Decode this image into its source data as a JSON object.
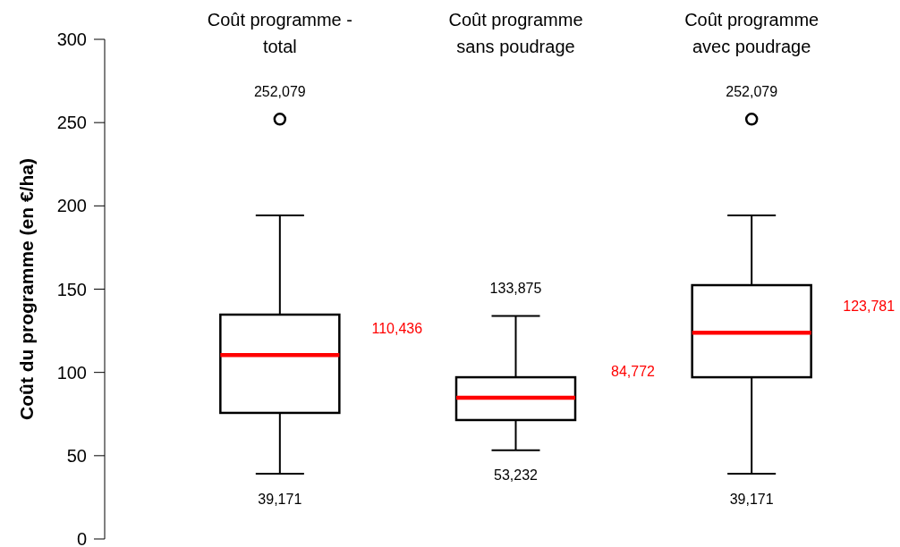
{
  "chart_data": {
    "type": "box",
    "ylabel": "Coût du programme (en €/ha)",
    "categories": [
      "Coût programme - total",
      "Coût programme sans poudrage",
      "Coût programme avec poudrage"
    ],
    "boxes": [
      {
        "low": 39.171,
        "q1": 75.7,
        "median": 110.436,
        "q3": 134.7,
        "high": 194.3,
        "outliers": [
          252.079
        ]
      },
      {
        "low": 53.232,
        "q1": 71.4,
        "median": 84.772,
        "q3": 97.1,
        "high": 133.875
      },
      {
        "low": 39.171,
        "q1": 97.1,
        "median": 123.781,
        "q3": 152.4,
        "high": 194.3,
        "outliers": [
          252.079
        ]
      }
    ],
    "ylim": [
      0,
      300
    ],
    "yticks": [
      0,
      50,
      100,
      150,
      200,
      250,
      300
    ],
    "annotations": [
      "252,079",
      "110,436",
      {
        "text": "39,171",
        "x": "Coût programme - total",
        "y": 39.171
      },
      {
        "text": "133,875",
        "x": "Coût programme sans poudrage",
        "y": 133.875
      },
      "84,772",
      {
        "text": "53,232",
        "x": "Coût programme sans poudrage",
        "y": 53.232
      },
      "252,079",
      "123,781",
      {
        "text": "39,171",
        "x": "Coût programme avec poudrage",
        "y": 39.171
      }
    ],
    "grid": false
  }
}
